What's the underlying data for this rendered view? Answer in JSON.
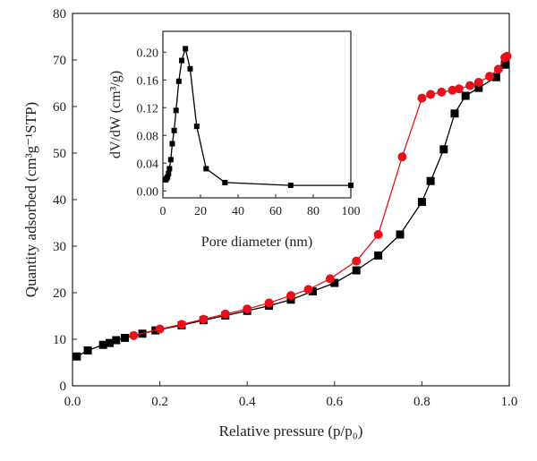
{
  "chart_data": [
    {
      "type": "line",
      "xlabel": "Relative pressure (p/p₀)",
      "ylabel": "Quantity adsorbed (cm³g⁻¹STP)",
      "xlim": [
        0.0,
        1.0
      ],
      "ylim": [
        0,
        80
      ],
      "x_ticks": [
        "0.0",
        "0.2",
        "0.4",
        "0.6",
        "0.8",
        "1.0"
      ],
      "y_ticks": [
        "0",
        "10",
        "20",
        "30",
        "40",
        "50",
        "60",
        "70",
        "80"
      ],
      "grid": false,
      "legend": "none",
      "series": [
        {
          "marker": "square",
          "color": "#000000",
          "points": [
            [
              0.01,
              6.3
            ],
            [
              0.035,
              7.6
            ],
            [
              0.07,
              8.8
            ],
            [
              0.085,
              9.2
            ],
            [
              0.1,
              9.8
            ],
            [
              0.12,
              10.3
            ],
            [
              0.16,
              11.2
            ],
            [
              0.19,
              11.9
            ],
            [
              0.25,
              13.0
            ],
            [
              0.3,
              14.1
            ],
            [
              0.35,
              15.1
            ],
            [
              0.4,
              16.1
            ],
            [
              0.45,
              17.2
            ],
            [
              0.5,
              18.5
            ],
            [
              0.55,
              20.3
            ],
            [
              0.6,
              22.1
            ],
            [
              0.65,
              24.8
            ],
            [
              0.7,
              28.0
            ],
            [
              0.75,
              32.5
            ],
            [
              0.8,
              39.5
            ],
            [
              0.82,
              44.0
            ],
            [
              0.85,
              50.8
            ],
            [
              0.875,
              58.5
            ],
            [
              0.9,
              62.3
            ],
            [
              0.93,
              64.0
            ],
            [
              0.97,
              66.3
            ],
            [
              0.99,
              69.0
            ]
          ]
        },
        {
          "marker": "circle",
          "color": "#e8101a",
          "points": [
            [
              0.14,
              10.8
            ],
            [
              0.2,
              12.2
            ],
            [
              0.25,
              13.2
            ],
            [
              0.3,
              14.3
            ],
            [
              0.35,
              15.4
            ],
            [
              0.4,
              16.5
            ],
            [
              0.45,
              17.8
            ],
            [
              0.5,
              19.4
            ],
            [
              0.54,
              20.7
            ],
            [
              0.59,
              23.0
            ],
            [
              0.65,
              26.8
            ],
            [
              0.7,
              32.5
            ],
            [
              0.755,
              49.2
            ],
            [
              0.8,
              61.8
            ],
            [
              0.82,
              62.6
            ],
            [
              0.845,
              63.1
            ],
            [
              0.87,
              63.5
            ],
            [
              0.885,
              63.8
            ],
            [
              0.91,
              64.5
            ],
            [
              0.93,
              65.2
            ],
            [
              0.955,
              66.5
            ],
            [
              0.975,
              68.0
            ],
            [
              0.99,
              70.5
            ],
            [
              0.995,
              70.8
            ]
          ]
        }
      ]
    },
    {
      "type": "line",
      "xlabel": "Pore diameter (nm)",
      "ylabel": "dV/dW (cm³/g)",
      "xlim": [
        0,
        100
      ],
      "ylim": [
        -0.01,
        0.23
      ],
      "x_ticks": [
        "0",
        "20",
        "40",
        "60",
        "80",
        "100"
      ],
      "y_ticks": [
        "0.00",
        "0.04",
        "0.08",
        "0.12",
        "0.16",
        "0.20"
      ],
      "grid": false,
      "legend": "none",
      "series": [
        {
          "marker": "square",
          "color": "#000000",
          "points": [
            [
              1.5,
              0.016
            ],
            [
              2.0,
              0.018
            ],
            [
              2.5,
              0.02
            ],
            [
              3.0,
              0.025
            ],
            [
              3.5,
              0.032
            ],
            [
              4.2,
              0.045
            ],
            [
              5.0,
              0.068
            ],
            [
              6.0,
              0.087
            ],
            [
              7.0,
              0.116
            ],
            [
              8.5,
              0.158
            ],
            [
              10.0,
              0.188
            ],
            [
              12.0,
              0.205
            ],
            [
              14.5,
              0.176
            ],
            [
              18.0,
              0.093
            ],
            [
              23.0,
              0.032
            ],
            [
              33.0,
              0.012
            ],
            [
              68.0,
              0.008
            ],
            [
              100.0,
              0.008
            ]
          ]
        }
      ]
    }
  ]
}
